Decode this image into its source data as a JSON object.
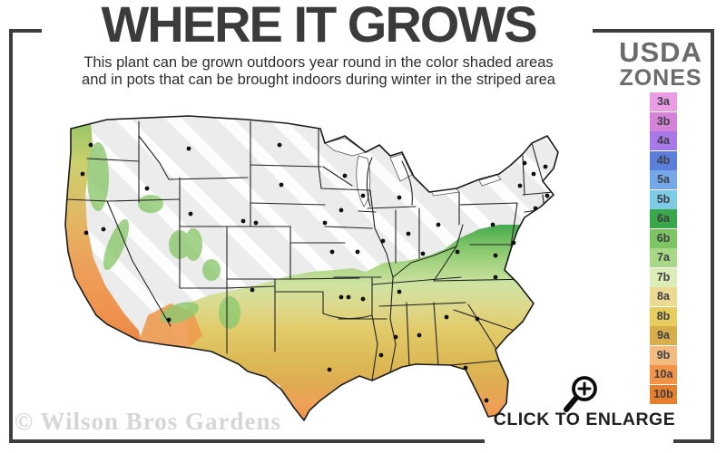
{
  "header": {
    "title": "WHERE IT GROWS",
    "subtitle_line1": "This plant can be grown outdoors year round in the color shaded areas",
    "subtitle_line2": "and in pots that can be brought indoors during winter in the striped area"
  },
  "legend": {
    "title_line1": "USDA",
    "title_line2": "ZONES",
    "zones": [
      {
        "label": "3a",
        "color": "#ea9ce4"
      },
      {
        "label": "3b",
        "color": "#d583d8"
      },
      {
        "label": "4a",
        "color": "#a878e8"
      },
      {
        "label": "4b",
        "color": "#5a7edb"
      },
      {
        "label": "5a",
        "color": "#74a8e8"
      },
      {
        "label": "5b",
        "color": "#7ecbe8"
      },
      {
        "label": "6a",
        "color": "#3aa74a"
      },
      {
        "label": "6b",
        "color": "#7dc562"
      },
      {
        "label": "7a",
        "color": "#a8d887"
      },
      {
        "label": "7b",
        "color": "#dcedb7"
      },
      {
        "label": "8a",
        "color": "#ecda92"
      },
      {
        "label": "8b",
        "color": "#e7cd5e"
      },
      {
        "label": "9a",
        "color": "#d8ae4a"
      },
      {
        "label": "9b",
        "color": "#f4bb80"
      },
      {
        "label": "10a",
        "color": "#f19448"
      },
      {
        "label": "10b",
        "color": "#e87f2d"
      }
    ]
  },
  "map": {
    "colors": {
      "base_gray": "#ececec",
      "stripe_white": "#ffffff",
      "outline": "#1c1c1c",
      "state_line": "#222222",
      "dot": "#111111",
      "lake": "#ffffff",
      "mountain_green": "#8cc96e",
      "desert_orange": "#ee9a50",
      "south_gradient": [
        "#45a94e",
        "#7cc466",
        "#a9d584",
        "#cfe3a2",
        "#dcd98e",
        "#e2cb6a",
        "#dcba55",
        "#e0ab52",
        "#efa058",
        "#ef8c44"
      ],
      "west_gradient": [
        "#92c566",
        "#cccf6e",
        "#e3b763",
        "#eda05a",
        "#ef9350",
        "#ec8746"
      ]
    }
  },
  "footer": {
    "watermark": "© Wilson Bros Gardens",
    "enlarge_label": "CLICK TO ENLARGE"
  }
}
